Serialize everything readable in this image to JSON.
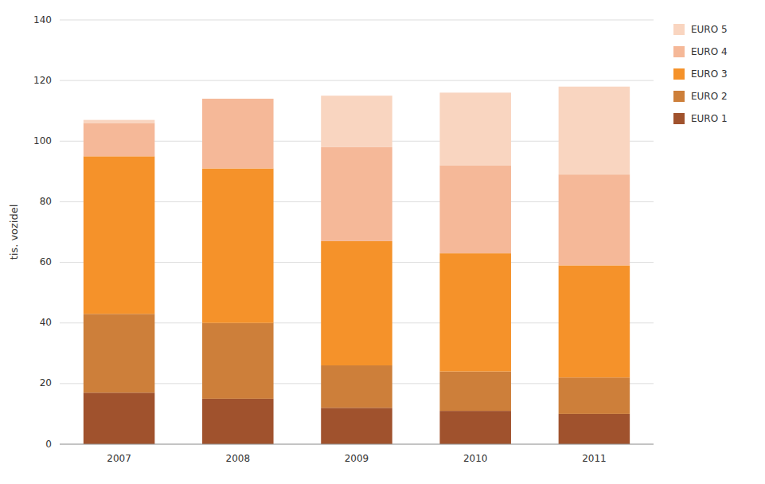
{
  "chart_data": {
    "type": "bar",
    "stacked": true,
    "categories": [
      "2007",
      "2008",
      "2009",
      "2010",
      "2011"
    ],
    "series": [
      {
        "name": "EURO 1",
        "color": "#A0522D",
        "values": [
          17,
          15,
          12,
          11,
          10
        ]
      },
      {
        "name": "EURO 2",
        "color": "#CD7F3A",
        "values": [
          26,
          25,
          14,
          13,
          12
        ]
      },
      {
        "name": "EURO 3",
        "color": "#F5922A",
        "values": [
          52,
          51,
          41,
          39,
          37
        ]
      },
      {
        "name": "EURO 4",
        "color": "#F5B898",
        "values": [
          11,
          23,
          31,
          29,
          30
        ]
      },
      {
        "name": "EURO 5",
        "color": "#F9D5C0",
        "values": [
          1,
          0,
          17,
          24,
          29
        ]
      }
    ],
    "ylabel": "tis. vozidel",
    "ylim": [
      0,
      140
    ],
    "yticks": [
      0,
      20,
      40,
      60,
      80,
      100,
      120,
      140
    ],
    "grid": true,
    "legend": "right"
  }
}
